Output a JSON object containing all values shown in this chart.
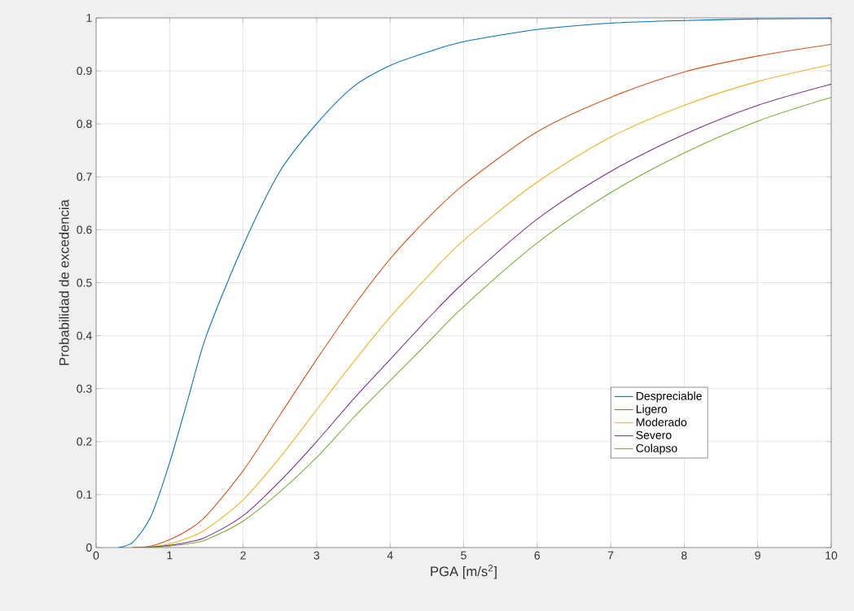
{
  "chart_data": {
    "type": "line",
    "xlabel": "PGA [m/s$^{2}$]",
    "ylabel": "Probabilidad de excedencia",
    "x": [
      0.3,
      0.5,
      0.75,
      1,
      1.25,
      1.5,
      2,
      2.5,
      3,
      3.5,
      4,
      4.5,
      5,
      6,
      7,
      8,
      9,
      10
    ],
    "series": [
      {
        "name": "Despreciable",
        "color": "#0072bd",
        "values": [
          0,
          0.01,
          0.06,
          0.16,
          0.28,
          0.4,
          0.57,
          0.71,
          0.8,
          0.87,
          0.91,
          0.935,
          0.955,
          0.978,
          0.99,
          0.995,
          0.998,
          0.999
        ]
      },
      {
        "name": "Ligero",
        "color": "#d95319",
        "values": [
          null,
          0,
          0.003,
          0.015,
          0.033,
          0.06,
          0.145,
          0.25,
          0.355,
          0.455,
          0.545,
          0.62,
          0.685,
          0.785,
          0.85,
          0.898,
          0.928,
          0.95
        ]
      },
      {
        "name": "Moderado",
        "color": "#edb120",
        "values": [
          null,
          0,
          0.001,
          0.007,
          0.018,
          0.035,
          0.09,
          0.17,
          0.26,
          0.35,
          0.435,
          0.51,
          0.58,
          0.69,
          0.775,
          0.835,
          0.88,
          0.912
        ]
      },
      {
        "name": "Severo",
        "color": "#7e2f8e",
        "values": [
          null,
          0,
          0.001,
          0.004,
          0.01,
          0.02,
          0.06,
          0.125,
          0.2,
          0.28,
          0.355,
          0.43,
          0.5,
          0.62,
          0.71,
          0.78,
          0.835,
          0.875
        ]
      },
      {
        "name": "Colapso",
        "color": "#77ac30",
        "values": [
          null,
          0,
          0,
          0.003,
          0.007,
          0.015,
          0.05,
          0.105,
          0.17,
          0.245,
          0.315,
          0.385,
          0.455,
          0.575,
          0.67,
          0.745,
          0.805,
          0.85
        ]
      }
    ],
    "xlim": [
      0,
      10
    ],
    "ylim": [
      0,
      1
    ],
    "xticks": [
      0,
      1,
      2,
      3,
      4,
      5,
      6,
      7,
      8,
      9,
      10
    ],
    "yticks": [
      0,
      0.1,
      0.2,
      0.3,
      0.4,
      0.5,
      0.6,
      0.7,
      0.8,
      0.9,
      1
    ],
    "grid": true,
    "legend": "bottom right",
    "line_style": "solid"
  }
}
